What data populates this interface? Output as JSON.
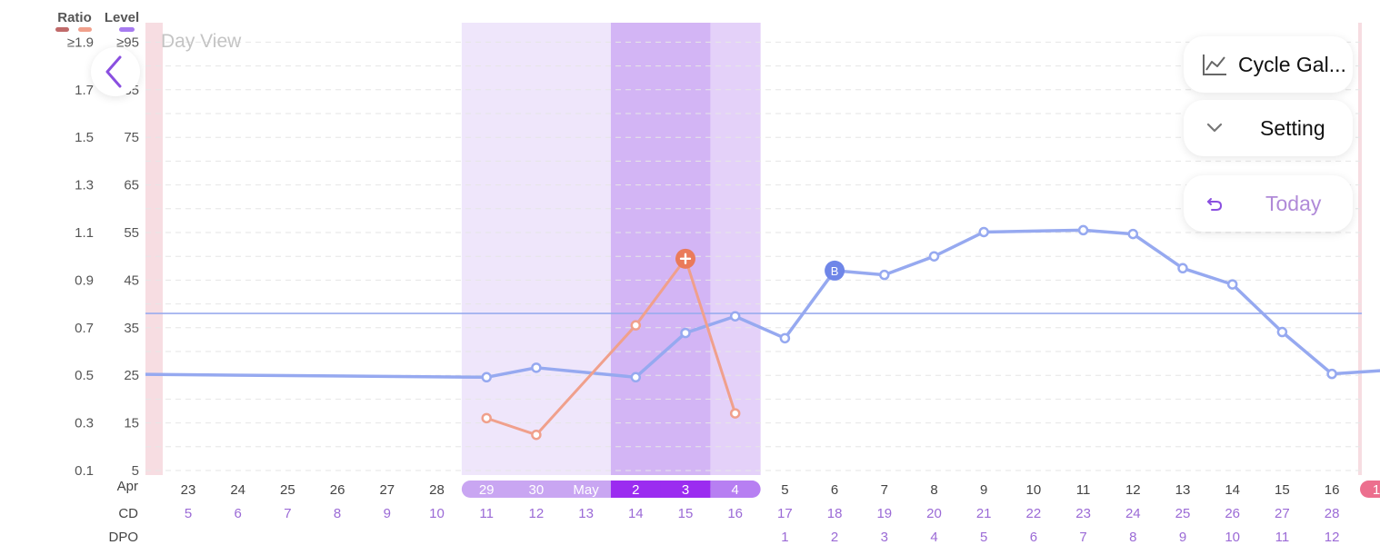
{
  "header": {
    "ratio_label": "Ratio",
    "level_label": "Level",
    "ratio_max": "≥1.9",
    "level_max": "≥95"
  },
  "day_view_label": "Day View",
  "buttons": {
    "cycle_gallery": "Cycle Gal...",
    "setting": "Setting",
    "today": "Today"
  },
  "rows": {
    "month_label": "Apr",
    "cd_label": "CD",
    "dpo_label": "DPO"
  },
  "colors": {
    "level_line": "#96a9f0",
    "ratio_line": "#f0a08c",
    "fertile": "#efe6fb",
    "peak": "#d3b5f5",
    "peak_end": "#e4d1f9",
    "accent": "#8a4fe0",
    "period": "#f7dde2"
  },
  "icons": {
    "back": "chevron-left-icon",
    "cycle_gallery": "line-chart-icon",
    "setting": "chevron-down-icon",
    "today": "undo-icon",
    "ovulation": "plus-icon",
    "baseline": "letter-b-icon"
  },
  "chart_data": {
    "type": "line",
    "ratio_axis": {
      "ticks": [
        "0.1",
        "0.3",
        "0.5",
        "0.7",
        "0.9",
        "1.1",
        "1.3",
        "1.5",
        "1.7",
        "≥1.9"
      ],
      "range": [
        0.1,
        1.9
      ]
    },
    "level_axis": {
      "ticks": [
        "5",
        "15",
        "25",
        "35",
        "45",
        "55",
        "65",
        "75",
        "85",
        "≥95"
      ],
      "range": [
        5,
        95
      ]
    },
    "days": [
      {
        "date": "23",
        "cd": "5",
        "dpo": ""
      },
      {
        "date": "24",
        "cd": "6",
        "dpo": ""
      },
      {
        "date": "25",
        "cd": "7",
        "dpo": ""
      },
      {
        "date": "26",
        "cd": "8",
        "dpo": ""
      },
      {
        "date": "27",
        "cd": "9",
        "dpo": ""
      },
      {
        "date": "28",
        "cd": "10",
        "dpo": ""
      },
      {
        "date": "29",
        "cd": "11",
        "dpo": "",
        "zone": "fertile"
      },
      {
        "date": "30",
        "cd": "12",
        "dpo": "",
        "zone": "fertile"
      },
      {
        "date": "May",
        "cd": "13",
        "dpo": "",
        "zone": "fertile"
      },
      {
        "date": "2",
        "cd": "14",
        "dpo": "",
        "zone": "peak"
      },
      {
        "date": "3",
        "cd": "15",
        "dpo": "",
        "zone": "peak"
      },
      {
        "date": "4",
        "cd": "16",
        "dpo": "",
        "zone": "peak-end"
      },
      {
        "date": "5",
        "cd": "17",
        "dpo": "1"
      },
      {
        "date": "6",
        "cd": "18",
        "dpo": "2"
      },
      {
        "date": "7",
        "cd": "19",
        "dpo": "3"
      },
      {
        "date": "8",
        "cd": "20",
        "dpo": "4"
      },
      {
        "date": "9",
        "cd": "21",
        "dpo": "5"
      },
      {
        "date": "10",
        "cd": "22",
        "dpo": "6"
      },
      {
        "date": "11",
        "cd": "23",
        "dpo": "7"
      },
      {
        "date": "12",
        "cd": "24",
        "dpo": "8"
      },
      {
        "date": "13",
        "cd": "25",
        "dpo": "9"
      },
      {
        "date": "14",
        "cd": "26",
        "dpo": "10"
      },
      {
        "date": "15",
        "cd": "27",
        "dpo": "11"
      },
      {
        "date": "16",
        "cd": "28",
        "dpo": "12"
      }
    ],
    "next_date_partial": "1",
    "level_series": {
      "points": [
        {
          "day": -1,
          "value": 25.2,
          "marker": false
        },
        {
          "day": 6,
          "value": 24.6,
          "marker": true
        },
        {
          "day": 7,
          "value": 26.6,
          "marker": true
        },
        {
          "day": 9,
          "value": 24.6,
          "marker": true
        },
        {
          "day": 10,
          "value": 33.9,
          "marker": true
        },
        {
          "day": 11,
          "value": 37.4,
          "marker": true
        },
        {
          "day": 12,
          "value": 32.8,
          "marker": true
        },
        {
          "day": 13,
          "value": 47.0,
          "marker": "baseline",
          "label": "B"
        },
        {
          "day": 14,
          "value": 46.1,
          "marker": true
        },
        {
          "day": 15,
          "value": 50.0,
          "marker": true
        },
        {
          "day": 16,
          "value": 55.1,
          "marker": true
        },
        {
          "day": 18,
          "value": 55.5,
          "marker": true
        },
        {
          "day": 19,
          "value": 54.7,
          "marker": true
        },
        {
          "day": 20,
          "value": 47.5,
          "marker": true
        },
        {
          "day": 21,
          "value": 44.1,
          "marker": true
        },
        {
          "day": 22,
          "value": 34.1,
          "marker": true
        },
        {
          "day": 23,
          "value": 25.3,
          "marker": true
        },
        {
          "day": 24,
          "value": 26.0,
          "marker": false
        }
      ]
    },
    "ratio_series": {
      "points": [
        {
          "day": 6,
          "value": 0.32
        },
        {
          "day": 7,
          "value": 0.25
        },
        {
          "day": 9,
          "value": 0.71
        },
        {
          "day": 10,
          "value": 0.99,
          "marker": "ovulation"
        },
        {
          "day": 11,
          "value": 0.34
        }
      ]
    },
    "threshold": {
      "level": 38.0
    },
    "grid": true
  }
}
